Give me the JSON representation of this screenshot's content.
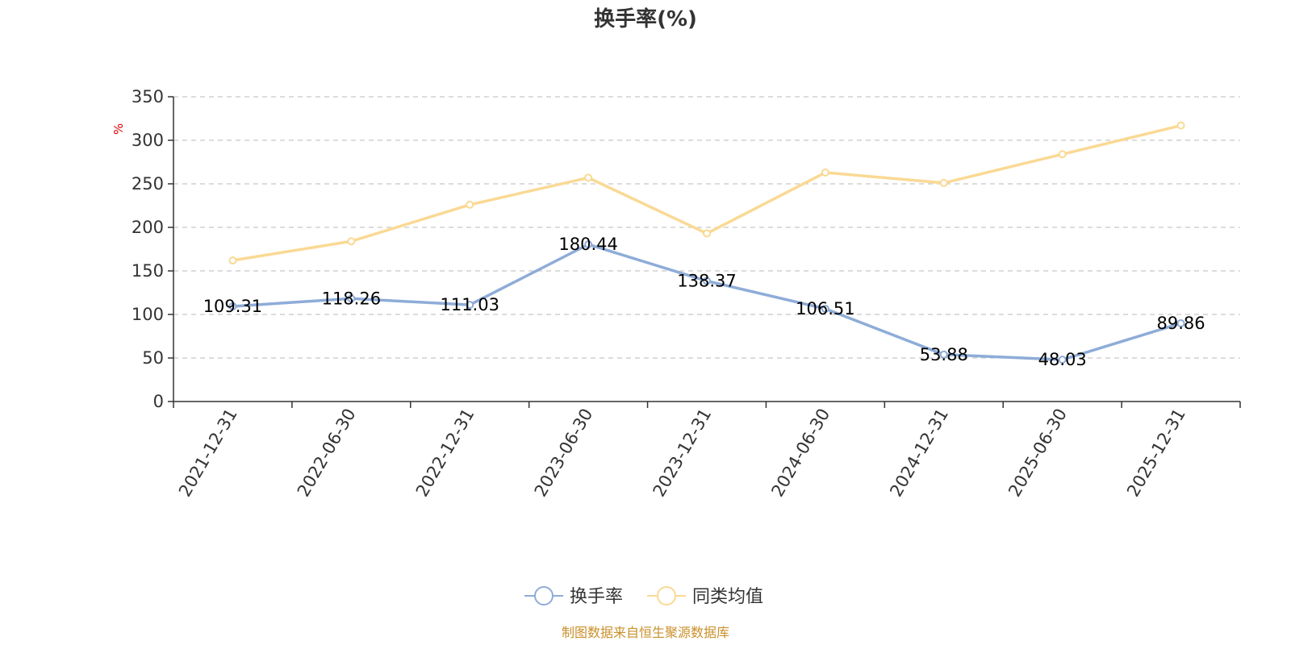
{
  "chart_data": {
    "type": "line",
    "title": "换手率(%)",
    "ylabel": "%",
    "xlabel": "",
    "categories": [
      "2021-12-31",
      "2022-06-30",
      "2022-12-31",
      "2023-06-30",
      "2023-12-31",
      "2024-06-30",
      "2024-12-31",
      "2025-06-30",
      "2025-12-31"
    ],
    "ylim": [
      0,
      350
    ],
    "yticks": [
      0,
      50,
      100,
      150,
      200,
      250,
      300,
      350
    ],
    "grid": true,
    "legend_position": "bottom",
    "series": [
      {
        "name": "换手率",
        "color": "#8eacd8",
        "values": [
          109.31,
          118.26,
          111.03,
          180.44,
          138.37,
          106.51,
          53.88,
          48.03,
          89.86
        ],
        "labels": [
          "109.31",
          "118.26",
          "111.03",
          "180.44",
          "138.37",
          "106.51",
          "53.88",
          "48.03",
          "89.86"
        ]
      },
      {
        "name": "同类均值",
        "color": "#fad994",
        "values": [
          162,
          184,
          226,
          257,
          193,
          263,
          251,
          284,
          317
        ]
      }
    ],
    "source": "制图数据来自恒生聚源数据库"
  }
}
